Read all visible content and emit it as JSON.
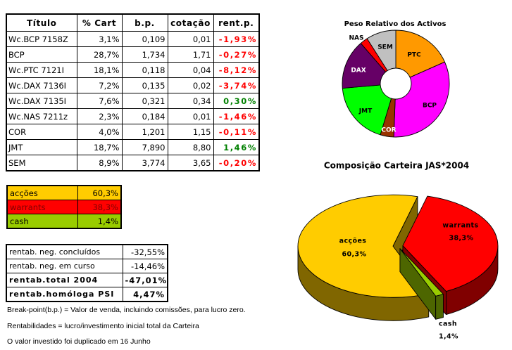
{
  "portfolio_table": {
    "headers": {
      "titulo": "Título",
      "cart": "% Cart",
      "bp": "b.p.",
      "cotacao": "cotação",
      "rent": "rent.p."
    },
    "rows": [
      {
        "titulo": "Wc.BCP 7158Z",
        "cart": "3,1%",
        "bp": "0,109",
        "cotacao": "0,01",
        "rent": "-1,93%",
        "trend": "negative"
      },
      {
        "titulo": "BCP",
        "cart": "28,7%",
        "bp": "1,734",
        "cotacao": "1,71",
        "rent": "-0,27%",
        "trend": "negative"
      },
      {
        "titulo": "Wc.PTC 7121I",
        "cart": "18,1%",
        "bp": "0,118",
        "cotacao": "0,04",
        "rent": "-8,12%",
        "trend": "negative"
      },
      {
        "titulo": "Wc.DAX 7136I",
        "cart": "7,2%",
        "bp": "0,135",
        "cotacao": "0,02",
        "rent": "-3,74%",
        "trend": "negative"
      },
      {
        "titulo": "Wc.DAX 7135I",
        "cart": "7,6%",
        "bp": "0,321",
        "cotacao": "0,34",
        "rent": "0,30%",
        "trend": "positive"
      },
      {
        "titulo": "Wc.NAS 7211z",
        "cart": "2,3%",
        "bp": "0,184",
        "cotacao": "0,01",
        "rent": "-1,46%",
        "trend": "negative"
      },
      {
        "titulo": "COR",
        "cart": "4,0%",
        "bp": "1,201",
        "cotacao": "1,15",
        "rent": "-0,11%",
        "trend": "negative"
      },
      {
        "titulo": "JMT",
        "cart": "18,7%",
        "bp": "7,890",
        "cotacao": "8,80",
        "rent": "1,46%",
        "trend": "positive"
      },
      {
        "titulo": "SEM",
        "cart": "8,9%",
        "bp": "3,774",
        "cotacao": "3,65",
        "rent": "-0,20%",
        "trend": "negative"
      }
    ]
  },
  "allocation_table": {
    "rows": [
      {
        "label": "acções",
        "value": "60,3%",
        "color": "#FFCC00"
      },
      {
        "label": "warrants",
        "value": "38,3%",
        "color": "#FF0000"
      },
      {
        "label": "cash",
        "value": "1,4%",
        "color": "#99CC00"
      }
    ]
  },
  "returns_table": {
    "rows": [
      {
        "label": "rentab. neg. concluídos",
        "value": "-32,55%",
        "bold": false
      },
      {
        "label": "rentab. neg. em curso",
        "value": "-14,46%",
        "bold": false
      },
      {
        "label": "rentab.total 2004",
        "value": "-47,01%",
        "bold": true
      },
      {
        "label": "rentab.homóloga PSI",
        "value": "4,47%",
        "bold": true
      }
    ]
  },
  "notes": [
    "Break-point(b.p.) = Valor de venda, incluindo comissões, para lucro zero.",
    "Rentabilidades = lucro/investimento inicial total da Carteira",
    "O valor investido foi duplicado em 16 Junho"
  ],
  "colors": {
    "negative": "#FF0000",
    "positive": "#008000",
    "border": "#000000",
    "background": "#FFFFFF"
  },
  "chart_data": [
    {
      "type": "pie",
      "variant": "donut",
      "title": "Peso Relativo dos Activos",
      "categories": [
        "PTC",
        "BCP",
        "COR",
        "JMT",
        "DAX",
        "NAS",
        "SEM"
      ],
      "values": [
        18.1,
        31.8,
        4.0,
        18.7,
        14.8,
        2.3,
        8.9
      ],
      "colors": [
        "#FF9900",
        "#FF00FF",
        "#993300",
        "#00FF00",
        "#660066",
        "#FF0000",
        "#C0C0C0"
      ],
      "label_colors": [
        "#000000",
        "#000000",
        "#FFFFFF",
        "#000000",
        "#FFFFFF",
        "#000000",
        "#000000"
      ],
      "start_angle_deg": 0,
      "direction": "clockwise",
      "legend": "none (labels on slices)"
    },
    {
      "type": "pie",
      "variant": "3d-exploded",
      "title": "Composição Carteira JAS*2004",
      "categories": [
        "acções",
        "warrants",
        "cash"
      ],
      "values": [
        60.3,
        38.3,
        1.4
      ],
      "value_labels": [
        "60,3%",
        "38,3%",
        "1,4%"
      ],
      "colors": [
        "#FFCC00",
        "#FF0000",
        "#99CC00"
      ],
      "side_colors": [
        "#806600",
        "#800000",
        "#4D6600"
      ],
      "legend": "none (labels on slices)"
    }
  ]
}
